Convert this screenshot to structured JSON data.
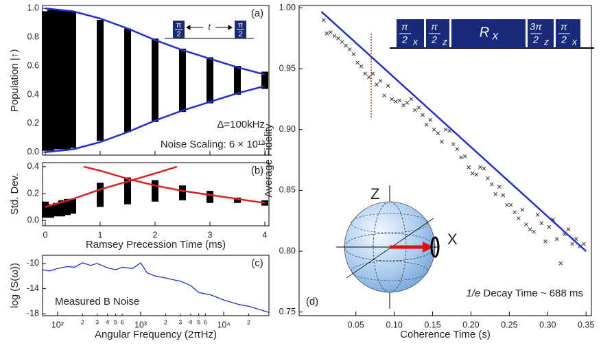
{
  "chart_data": [
    {
      "type": "band",
      "panel": "(a)",
      "ylabel": "Population |↑⟩",
      "ylim": [
        -0.02,
        1.02
      ],
      "xlim": [
        -0.05,
        4.075
      ],
      "yticks": [
        {
          "value": 0,
          "label": "0.0"
        },
        0.2,
        0.4,
        0.6,
        0.8,
        {
          "value": 1,
          "label": "1.0"
        }
      ],
      "clusters": {
        "color": "#000000",
        "x": [
          0,
          0.1,
          0.2,
          0.3,
          0.4,
          0.5,
          1,
          1.5,
          2,
          2.5,
          3,
          3.5,
          4
        ],
        "high": [
          0.98,
          0.99,
          0.99,
          0.99,
          0.98,
          0.98,
          0.92,
          0.86,
          0.79,
          0.72,
          0.66,
          0.6,
          0.56
        ],
        "low": [
          0.01,
          0.01,
          0.02,
          0.02,
          0.02,
          0.03,
          0.08,
          0.14,
          0.21,
          0.28,
          0.34,
          0.4,
          0.44
        ]
      },
      "fits": [
        {
          "color": "#1f2fd0",
          "x": [
            0,
            0.5,
            1,
            1.5,
            2,
            2.5,
            3,
            3.5,
            4
          ],
          "y": [
            1.0,
            0.98,
            0.93,
            0.86,
            0.78,
            0.71,
            0.65,
            0.59,
            0.54
          ]
        },
        {
          "color": "#1f2fd0",
          "x": [
            0,
            0.5,
            1,
            1.5,
            2,
            2.5,
            3,
            3.5,
            4
          ],
          "y": [
            0,
            0.02,
            0.07,
            0.14,
            0.22,
            0.29,
            0.35,
            0.41,
            0.46
          ]
        }
      ],
      "pulse": {
        "boxes": [
          {
            "num": "π",
            "den": "2"
          },
          {
            "num": "π",
            "den": "2"
          }
        ],
        "gap": "t"
      },
      "annotations": [
        "Δ=100kHz",
        "Noise Scaling: 6 × 10¹²"
      ]
    },
    {
      "type": "band",
      "panel": "(b)",
      "ylabel": "Std. Dev.",
      "xlabel": "Ramsey Precession Time (ms)",
      "ylim": [
        -0.04,
        0.43
      ],
      "xlim": [
        -0.05,
        4.075
      ],
      "yticks": [
        {
          "value": 0,
          "label": "0.0"
        },
        0.2,
        0.4
      ],
      "xticks": [
        0,
        1,
        2,
        3,
        4
      ],
      "clusters": {
        "color": "#000000",
        "x": [
          0,
          0.1,
          0.2,
          0.3,
          0.4,
          0.5,
          1,
          1.5,
          2,
          2.5,
          3,
          3.5,
          4
        ],
        "high": [
          0.14,
          0.12,
          0.13,
          0.15,
          0.16,
          0.16,
          0.28,
          0.32,
          0.3,
          0.26,
          0.22,
          0.17,
          0.15
        ],
        "low": [
          0.02,
          0.02,
          0.03,
          0.03,
          0.04,
          0.05,
          0.1,
          0.12,
          0.14,
          0.15,
          0.13,
          0.13,
          0.11
        ]
      },
      "fits": [
        {
          "color": "#e02020",
          "x": [
            0,
            0.5,
            1,
            1.5,
            2,
            2.4
          ],
          "y": [
            0.1,
            0.16,
            0.23,
            0.29,
            0.35,
            0.4
          ]
        },
        {
          "color": "#e02020",
          "x": [
            0.7,
            1,
            1.5,
            2,
            2.5,
            3,
            3.5,
            4
          ],
          "y": [
            0.4,
            0.37,
            0.31,
            0.26,
            0.22,
            0.19,
            0.16,
            0.13
          ]
        }
      ]
    },
    {
      "type": "line",
      "panel": "(c)",
      "ylabel": "log (S(ω))",
      "xlabel": "Angular Frequency (2πHz)",
      "xlog": true,
      "xlim": [
        66,
        35000
      ],
      "ylim": [
        -18.3,
        -8.7
      ],
      "yticks": [
        -10,
        -14,
        -18
      ],
      "xticks": [
        {
          "value": 100,
          "label": "10²"
        },
        {
          "value": 200,
          "label": "2"
        },
        {
          "value": 300,
          "label": "3"
        },
        {
          "value": 400,
          "label": "4"
        },
        {
          "value": 500,
          "label": "5"
        },
        {
          "value": 600,
          "label": "6"
        },
        {
          "value": 1000,
          "label": "10³"
        },
        {
          "value": 2000,
          "label": "2"
        },
        {
          "value": 3000,
          "label": "3"
        },
        {
          "value": 4000,
          "label": "4"
        },
        {
          "value": 5000,
          "label": "5"
        },
        {
          "value": 6000,
          "label": "6"
        },
        {
          "value": 10000,
          "label": "10⁴"
        },
        {
          "value": 20000,
          "label": "2"
        }
      ],
      "fits": [
        {
          "color": "#1f2fd0",
          "x": [
            66,
            80,
            100,
            130,
            160,
            200,
            250,
            300,
            400,
            500,
            600,
            800,
            1000,
            1200,
            1500,
            2000,
            2500,
            3000,
            4000,
            5000,
            7000,
            10000,
            15000,
            20000,
            30000,
            35000
          ],
          "y": [
            -11,
            -11.2,
            -10.8,
            -10.5,
            -10.6,
            -9.9,
            -10.3,
            -10,
            -10.7,
            -11,
            -10.6,
            -10.8,
            -9.9,
            -11.5,
            -12,
            -12.3,
            -12.6,
            -12.8,
            -13.5,
            -14.6,
            -15,
            -15.8,
            -16.5,
            -16.8,
            -17.5,
            -17.8
          ]
        }
      ],
      "annotations": [
        "Measured B Noise"
      ]
    },
    {
      "type": "scatter",
      "panel": "(d)",
      "ylabel": "Average Fidelity",
      "xlabel": "Coherence Time (s)",
      "xlim": [
        -0.024,
        0.357
      ],
      "ylim": [
        0.747,
        1.002
      ],
      "xticks": [
        0.05,
        {
          "value": 0.1,
          "label": "0.10"
        },
        0.15,
        {
          "value": 0.2,
          "label": "0.20"
        },
        0.25,
        {
          "value": 0.3,
          "label": "0.30"
        },
        0.35
      ],
      "yticks": [
        0.75,
        {
          "value": 0.8,
          "label": "0.80"
        },
        0.85,
        {
          "value": 0.9,
          "label": "0.90"
        },
        0.95,
        {
          "value": 1,
          "label": "1.00"
        }
      ],
      "points": {
        "color": "#333333",
        "x": [
          0.008,
          0.012,
          0.017,
          0.022,
          0.027,
          0.032,
          0.037,
          0.042,
          0.047,
          0.052,
          0.057,
          0.062,
          0.067,
          0.072,
          0.077,
          0.082,
          0.087,
          0.092,
          0.097,
          0.102,
          0.107,
          0.112,
          0.117,
          0.122,
          0.127,
          0.132,
          0.137,
          0.142,
          0.147,
          0.152,
          0.157,
          0.162,
          0.167,
          0.172,
          0.177,
          0.182,
          0.187,
          0.192,
          0.197,
          0.202,
          0.207,
          0.212,
          0.217,
          0.222,
          0.227,
          0.232,
          0.237,
          0.242,
          0.247,
          0.252,
          0.257,
          0.262,
          0.267,
          0.272,
          0.277,
          0.282,
          0.287,
          0.292,
          0.297,
          0.302,
          0.307,
          0.312,
          0.317,
          0.322,
          0.327,
          0.332,
          0.337,
          0.342,
          0.347
        ],
        "y": [
          0.99,
          0.979,
          0.98,
          0.977,
          0.975,
          0.972,
          0.969,
          0.966,
          0.962,
          0.955,
          0.952,
          0.946,
          0.943,
          0.946,
          0.937,
          0.94,
          0.928,
          0.936,
          0.925,
          0.923,
          0.924,
          0.92,
          0.922,
          0.925,
          0.916,
          0.918,
          0.912,
          0.904,
          0.908,
          0.9,
          0.897,
          0.89,
          0.9,
          0.899,
          0.888,
          0.884,
          0.877,
          0.878,
          0.869,
          0.864,
          0.863,
          0.869,
          0.868,
          0.86,
          0.855,
          0.847,
          0.853,
          0.846,
          0.838,
          0.838,
          0.832,
          0.827,
          0.834,
          0.822,
          0.818,
          0.816,
          0.83,
          0.823,
          0.808,
          0.82,
          0.826,
          0.81,
          0.79,
          0.814,
          0.818,
          0.806,
          0.81,
          0.804,
          0.806
        ]
      },
      "fits": [
        {
          "color": "#1f2fd0",
          "x": [
            0.005,
            0.35
          ],
          "y": [
            0.997,
            0.8
          ]
        }
      ],
      "cut": {
        "color": "#e00000",
        "x": 0.07,
        "y": [
          0.91,
          0.98
        ]
      },
      "pulse": {
        "boxes": [
          {
            "num": "π",
            "den": "2",
            "sub": "x"
          },
          {
            "num": "π",
            "den": "2",
            "sub": "z"
          },
          {
            "label": "R",
            "sub": "X"
          },
          {
            "num": "3π",
            "den": "2",
            "sub": "z"
          },
          {
            "num": "π",
            "den": "2",
            "sub": "x"
          }
        ]
      },
      "sphere_labels": [
        "Z",
        "X"
      ],
      "decay": [
        "1/e",
        " Decay Time ~ 688 ms"
      ]
    }
  ]
}
